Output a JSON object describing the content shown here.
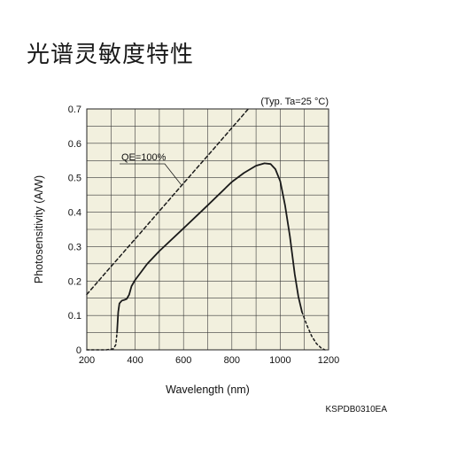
{
  "page": {
    "title": "光谱灵敏度特性",
    "document_code": "KSPDB0310EA"
  },
  "chart_data": {
    "type": "line",
    "title": "光谱灵敏度特性",
    "xlabel": "Wavelength (nm)",
    "ylabel": "Photosensitivity (A/W)",
    "xlim": [
      200,
      1200
    ],
    "ylim": [
      0,
      0.7
    ],
    "x_ticks": [
      "200",
      "400",
      "600",
      "800",
      "1000",
      "1200"
    ],
    "y_ticks": [
      "0",
      "0.1",
      "0.2",
      "0.3",
      "0.4",
      "0.5",
      "0.6",
      "0.7"
    ],
    "x_tick_values": [
      200,
      400,
      600,
      800,
      1000,
      1200
    ],
    "y_tick_values": [
      0,
      0.1,
      0.2,
      0.3,
      0.4,
      0.5,
      0.6,
      0.7
    ],
    "x_grid_step": 100,
    "y_grid_step": 0.05,
    "grid": true,
    "condition_label": "(Typ. Ta=25 °C)",
    "background_color": "#f2f0de",
    "line_color": "#1a1a1a",
    "series": [
      {
        "style": "solid",
        "points": [
          [
            325,
            0.05
          ],
          [
            330,
            0.11
          ],
          [
            335,
            0.135
          ],
          [
            345,
            0.143
          ],
          [
            355,
            0.145
          ],
          [
            365,
            0.148
          ],
          [
            375,
            0.16
          ],
          [
            385,
            0.185
          ],
          [
            400,
            0.203
          ],
          [
            450,
            0.25
          ],
          [
            500,
            0.287
          ],
          [
            600,
            0.353
          ],
          [
            700,
            0.42
          ],
          [
            800,
            0.488
          ],
          [
            850,
            0.514
          ],
          [
            900,
            0.535
          ],
          [
            935,
            0.542
          ],
          [
            960,
            0.54
          ],
          [
            980,
            0.525
          ],
          [
            1000,
            0.49
          ],
          [
            1020,
            0.42
          ],
          [
            1040,
            0.33
          ],
          [
            1060,
            0.22
          ],
          [
            1075,
            0.155
          ],
          [
            1090,
            0.11
          ]
        ]
      },
      {
        "style": "dotted",
        "points": [
          [
            200,
            0
          ],
          [
            280,
            0
          ],
          [
            310,
            0.003
          ],
          [
            320,
            0.015
          ],
          [
            325,
            0.05
          ]
        ]
      },
      {
        "style": "dotted",
        "points": [
          [
            1090,
            0.11
          ],
          [
            1110,
            0.072
          ],
          [
            1130,
            0.04
          ],
          [
            1150,
            0.018
          ],
          [
            1170,
            0.005
          ],
          [
            1185,
            0
          ]
        ]
      },
      {
        "name": "QE=100%",
        "style": "dashed",
        "points": [
          [
            200,
            0.161
          ],
          [
            300,
            0.242
          ],
          [
            400,
            0.322
          ],
          [
            500,
            0.403
          ],
          [
            600,
            0.484
          ],
          [
            700,
            0.564
          ],
          [
            800,
            0.645
          ],
          [
            868,
            0.7
          ]
        ]
      }
    ],
    "annotations": [
      {
        "text": "QE=100%",
        "target": [
          590,
          0.48
        ]
      }
    ]
  }
}
